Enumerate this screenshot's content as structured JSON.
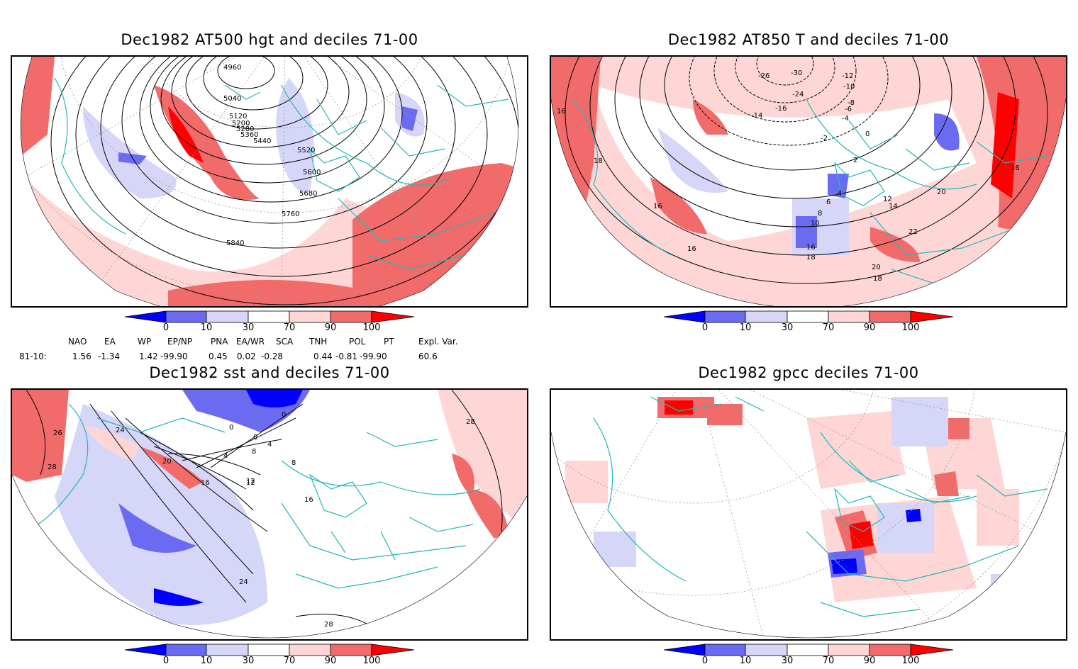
{
  "panels": [
    {
      "title": "Dec1982 AT500 hgt and deciles 71-00",
      "contour_labels": [
        "4960",
        "5040",
        "5120",
        "5200",
        "5280",
        "5360",
        "5440",
        "5520",
        "5600",
        "5680",
        "5760",
        "5840"
      ]
    },
    {
      "title": "Dec1982 AT850 T and deciles 71-00",
      "contour_labels": [
        "-26",
        "-30",
        "-12",
        "-10",
        "-8",
        "-6",
        "-4",
        "-14",
        "-16",
        "-24",
        "-2",
        "0",
        "2",
        "4",
        "6",
        "8",
        "10",
        "12",
        "14",
        "16",
        "16",
        "18",
        "16",
        "20",
        "22",
        "18",
        "16",
        "20",
        "18",
        "16"
      ]
    },
    {
      "title": "Dec1982 sst and deciles 71-00",
      "contour_labels": [
        "26",
        "28",
        "24",
        "20",
        "16",
        "12",
        "8",
        "4",
        "0",
        "0",
        "0",
        "4",
        "16",
        "12",
        "24",
        "28",
        "28",
        "8"
      ]
    },
    {
      "title": "Dec1982 gpcc deciles 71-00",
      "contour_labels": []
    }
  ],
  "colorbar": {
    "tick_labels": [
      "0",
      "10",
      "30",
      "70",
      "90",
      "100"
    ],
    "colors": [
      "#0000ff",
      "#6b6bf2",
      "#d6d6f8",
      "#ffffff",
      "#ffd6d6",
      "#f26b6b",
      "#ff0000"
    ]
  },
  "indices": {
    "headers": [
      "NAO",
      "EA",
      "WP",
      "EP/NP",
      "PNA",
      "EA/WR",
      "SCA",
      "TNH",
      "POL",
      "PT",
      "Expl. Var."
    ],
    "row_label": "81-10:",
    "values": [
      "1.56",
      "-1.34",
      "1.42",
      "-99.90",
      "0.45",
      "0.02",
      "-0.28",
      "0.44",
      "-0.81",
      "-99.90",
      "60.6"
    ]
  },
  "map_colors": {
    "coast": "#22b8b8",
    "grid": "#999999",
    "contour": "#000000"
  }
}
